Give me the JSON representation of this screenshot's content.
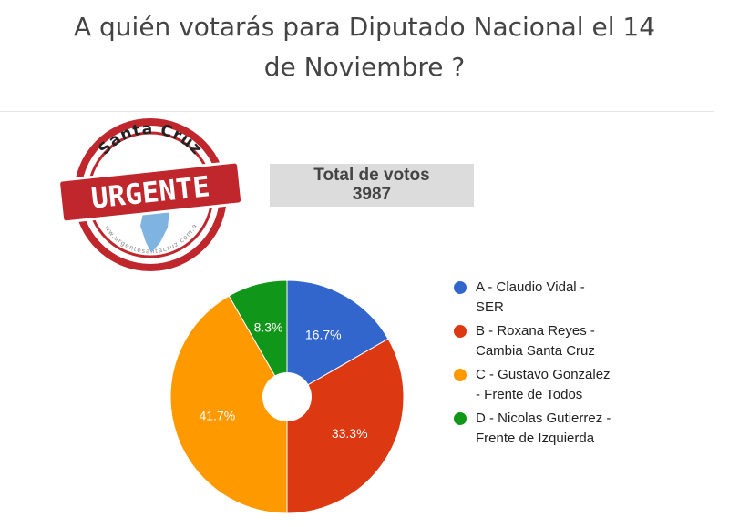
{
  "page": {
    "title_line1": "A quién votarás para Diputado Nacional el 14",
    "title_line2": "de Noviembre ?"
  },
  "logo": {
    "top_text": "Santa Cruz",
    "main_text": "URGENTE",
    "ring_text": "www.urgentesantacruz.com.ar",
    "color": "#c0272d"
  },
  "total": {
    "label": "Total de votos",
    "value": "3987"
  },
  "chart_data": {
    "type": "pie",
    "donut_hole": true,
    "categories": [
      "A - Claudio Vidal - SER",
      "B - Roxana Reyes - Cambia Santa Cruz",
      "C - Gustavo Gonzalez - Frente de Todos",
      "D - Nicolas Gutierrez - Frente de Izquierda"
    ],
    "values": [
      16.7,
      33.3,
      41.7,
      8.3
    ],
    "labels": [
      "16.7%",
      "33.3%",
      "41.7%",
      "8.3%"
    ],
    "colors": [
      "#3366cc",
      "#dc3912",
      "#ff9900",
      "#109618"
    ],
    "legend_position": "right"
  }
}
